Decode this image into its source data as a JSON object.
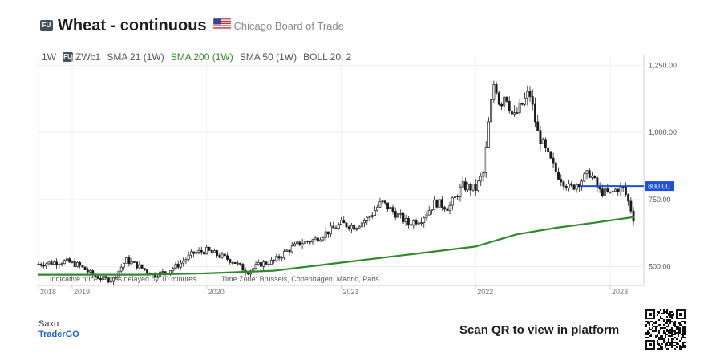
{
  "header": {
    "badge": "FU",
    "title": "Wheat - continuous",
    "exchange": "Chicago Board of Trade"
  },
  "indicators": {
    "interval": "1W",
    "badge": "FU",
    "symbol": "ZWc1",
    "sma21": "SMA 21 (1W)",
    "sma200": "SMA 200 (1W)",
    "sma50": "SMA 50 (1W)",
    "boll": "BOLL 20; 2"
  },
  "colors": {
    "candle": "#1a1a1a",
    "sma200": "#2f8a2a",
    "level_line": "#1f4ed8",
    "level_label_bg": "#1f4ed8"
  },
  "footer": {
    "disclaimer": "Indicative price. Prices delayed by 10 minutes",
    "timezone": "Time Zone: Brussels, Copenhagen, Madrid, Paris",
    "brand_name": "Saxo",
    "brand_product": "TraderGO",
    "cta": "Scan QR to view in platform"
  },
  "chart_data": {
    "type": "line",
    "title": "Wheat - continuous",
    "ylim": [
      430,
      1290
    ],
    "y_ticks": [
      "500.00",
      "750.00",
      "1,000.00",
      "1,250.00"
    ],
    "y_tick_values": [
      500,
      750,
      1000,
      1250
    ],
    "x_ticks": [
      "2018",
      "2019",
      "2020",
      "2021",
      "2022",
      "2023"
    ],
    "x_tick_years": [
      2018.75,
      2019.0,
      2020.0,
      2021.0,
      2022.0,
      2023.0
    ],
    "x_range": [
      2018.75,
      2023.25
    ],
    "level_line": {
      "label": "800.00",
      "value": 800,
      "start_year": 2022.78
    },
    "series": [
      {
        "name": "ZWc1",
        "style": "candlestick",
        "x": [
          2018.75,
          2018.85,
          2018.95,
          2019.05,
          2019.15,
          2019.22,
          2019.3,
          2019.4,
          2019.5,
          2019.6,
          2019.7,
          2019.8,
          2019.9,
          2020.0,
          2020.1,
          2020.2,
          2020.3,
          2020.4,
          2020.5,
          2020.6,
          2020.7,
          2020.8,
          2020.9,
          2021.0,
          2021.1,
          2021.2,
          2021.3,
          2021.4,
          2021.5,
          2021.6,
          2021.7,
          2021.8,
          2021.9,
          2022.0,
          2022.06,
          2022.1,
          2022.14,
          2022.18,
          2022.22,
          2022.28,
          2022.34,
          2022.4,
          2022.46,
          2022.52,
          2022.6,
          2022.7,
          2022.78,
          2022.85,
          2022.92,
          2023.0,
          2023.05,
          2023.1,
          2023.15,
          2023.18
        ],
        "close": [
          510,
          515,
          520,
          505,
          470,
          455,
          450,
          525,
          500,
          470,
          480,
          510,
          550,
          560,
          540,
          520,
          480,
          510,
          520,
          560,
          590,
          600,
          630,
          660,
          650,
          680,
          740,
          700,
          660,
          680,
          740,
          720,
          800,
          790,
          850,
          1050,
          1200,
          1100,
          1150,
          1050,
          1100,
          1150,
          1000,
          930,
          850,
          790,
          820,
          850,
          780,
          770,
          790,
          790,
          720,
          670
        ]
      },
      {
        "name": "SMA 200 (1W)",
        "x": [
          2018.75,
          2019.0,
          2019.5,
          2020.0,
          2020.5,
          2021.0,
          2021.5,
          2022.0,
          2022.3,
          2022.6,
          2022.9,
          2023.18
        ],
        "values": [
          470,
          470,
          470,
          475,
          485,
          515,
          545,
          575,
          620,
          645,
          665,
          685
        ]
      }
    ]
  }
}
